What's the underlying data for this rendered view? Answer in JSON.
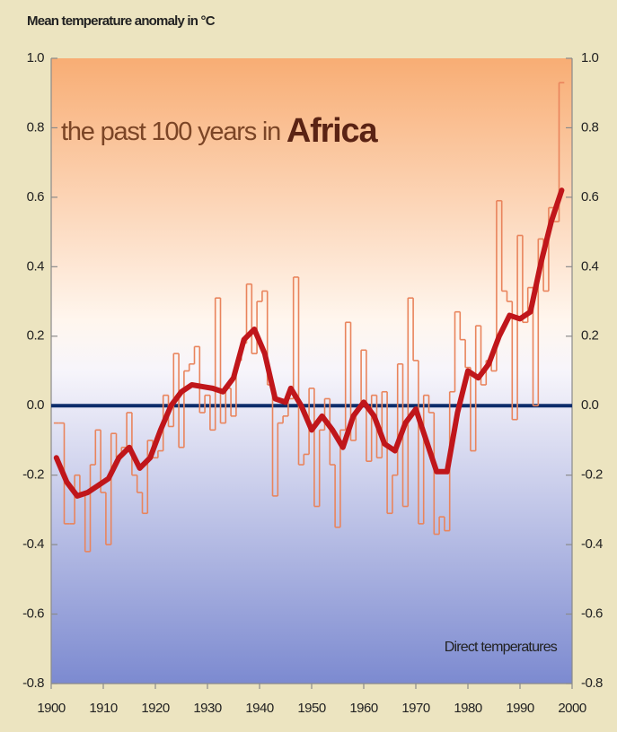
{
  "chart_data": {
    "type": "line",
    "axis_title": "Mean temperature anomaly in °C",
    "title": "the past 100 years in",
    "title_emphasis": "Africa",
    "annotation": "Direct temperatures",
    "xlim": [
      1900,
      2000
    ],
    "xticks": [
      1900,
      1910,
      1920,
      1930,
      1940,
      1950,
      1960,
      1970,
      1980,
      1990,
      2000
    ],
    "ylim": [
      -0.8,
      1.0
    ],
    "yticks": [
      -0.8,
      -0.6,
      -0.4,
      -0.2,
      {
        "value": 0,
        "label": "0.0"
      },
      0.2,
      0.4,
      0.6,
      0.8,
      {
        "value": 1,
        "label": "1.0"
      }
    ],
    "zero_line_color": "#0d2d6b",
    "series": [
      {
        "color": "#e9845c",
        "drawstyle": "steps-mid",
        "x": [
          1901,
          1902,
          1903,
          1904,
          1905,
          1906,
          1907,
          1908,
          1909,
          1910,
          1911,
          1912,
          1913,
          1914,
          1915,
          1916,
          1917,
          1918,
          1919,
          1920,
          1921,
          1922,
          1923,
          1924,
          1925,
          1926,
          1927,
          1928,
          1929,
          1930,
          1931,
          1932,
          1933,
          1934,
          1935,
          1936,
          1937,
          1938,
          1939,
          1940,
          1941,
          1942,
          1943,
          1944,
          1945,
          1946,
          1947,
          1948,
          1949,
          1950,
          1951,
          1952,
          1953,
          1954,
          1955,
          1956,
          1957,
          1958,
          1959,
          1960,
          1961,
          1962,
          1963,
          1964,
          1965,
          1966,
          1967,
          1968,
          1969,
          1970,
          1971,
          1972,
          1973,
          1974,
          1975,
          1976,
          1977,
          1978,
          1979,
          1980,
          1981,
          1982,
          1983,
          1984,
          1985,
          1986,
          1987,
          1988,
          1989,
          1990,
          1991,
          1992,
          1993,
          1994,
          1995,
          1996,
          1997,
          1998
        ],
        "values": [
          -0.05,
          -0.05,
          -0.34,
          -0.34,
          -0.2,
          -0.25,
          -0.42,
          -0.17,
          -0.07,
          -0.25,
          -0.4,
          -0.08,
          -0.15,
          -0.12,
          -0.02,
          -0.2,
          -0.25,
          -0.31,
          -0.1,
          -0.15,
          -0.13,
          0.03,
          -0.06,
          0.15,
          -0.12,
          0.1,
          0.12,
          0.17,
          -0.02,
          0.03,
          -0.07,
          0.31,
          -0.05,
          0.05,
          -0.03,
          0.13,
          0.18,
          0.35,
          0.15,
          0.3,
          0.33,
          0.06,
          -0.26,
          -0.05,
          -0.03,
          0.02,
          0.37,
          -0.17,
          -0.14,
          0.05,
          -0.29,
          -0.07,
          0.02,
          -0.17,
          -0.35,
          -0.07,
          0.24,
          -0.1,
          -0.01,
          0.16,
          -0.16,
          0.03,
          -0.15,
          0.04,
          -0.31,
          -0.2,
          0.12,
          -0.29,
          0.31,
          0.13,
          -0.34,
          0.03,
          -0.02,
          -0.37,
          -0.32,
          -0.36,
          0.04,
          0.27,
          0.19,
          0.11,
          -0.13,
          0.23,
          0.06,
          0.13,
          0.1,
          0.59,
          0.33,
          0.3,
          -0.04,
          0.49,
          0.24,
          0.34,
          0.0,
          0.48,
          0.33,
          0.57,
          0.53,
          0.93
        ]
      },
      {
        "color": "#c0161b",
        "x": [
          1901,
          1903,
          1905,
          1907,
          1909,
          1911,
          1913,
          1915,
          1917,
          1919,
          1921,
          1923,
          1925,
          1927,
          1929,
          1931,
          1933,
          1935,
          1937,
          1939,
          1941,
          1943,
          1945,
          1946,
          1948,
          1950,
          1952,
          1954,
          1956,
          1958,
          1960,
          1962,
          1964,
          1966,
          1968,
          1970,
          1972,
          1974,
          1976,
          1978,
          1980,
          1982,
          1984,
          1986,
          1988,
          1990,
          1992,
          1994,
          1996,
          1998
        ],
        "values": [
          -0.15,
          -0.22,
          -0.26,
          -0.25,
          -0.23,
          -0.21,
          -0.15,
          -0.12,
          -0.18,
          -0.15,
          -0.07,
          0.0,
          0.04,
          0.06,
          0.055,
          0.05,
          0.04,
          0.08,
          0.19,
          0.22,
          0.15,
          0.02,
          0.01,
          0.05,
          0.0,
          -0.07,
          -0.03,
          -0.07,
          -0.12,
          -0.03,
          0.01,
          -0.03,
          -0.11,
          -0.13,
          -0.05,
          -0.01,
          -0.1,
          -0.19,
          -0.19,
          -0.02,
          0.1,
          0.08,
          0.12,
          0.2,
          0.26,
          0.25,
          0.27,
          0.41,
          0.53,
          0.62
        ]
      }
    ]
  }
}
